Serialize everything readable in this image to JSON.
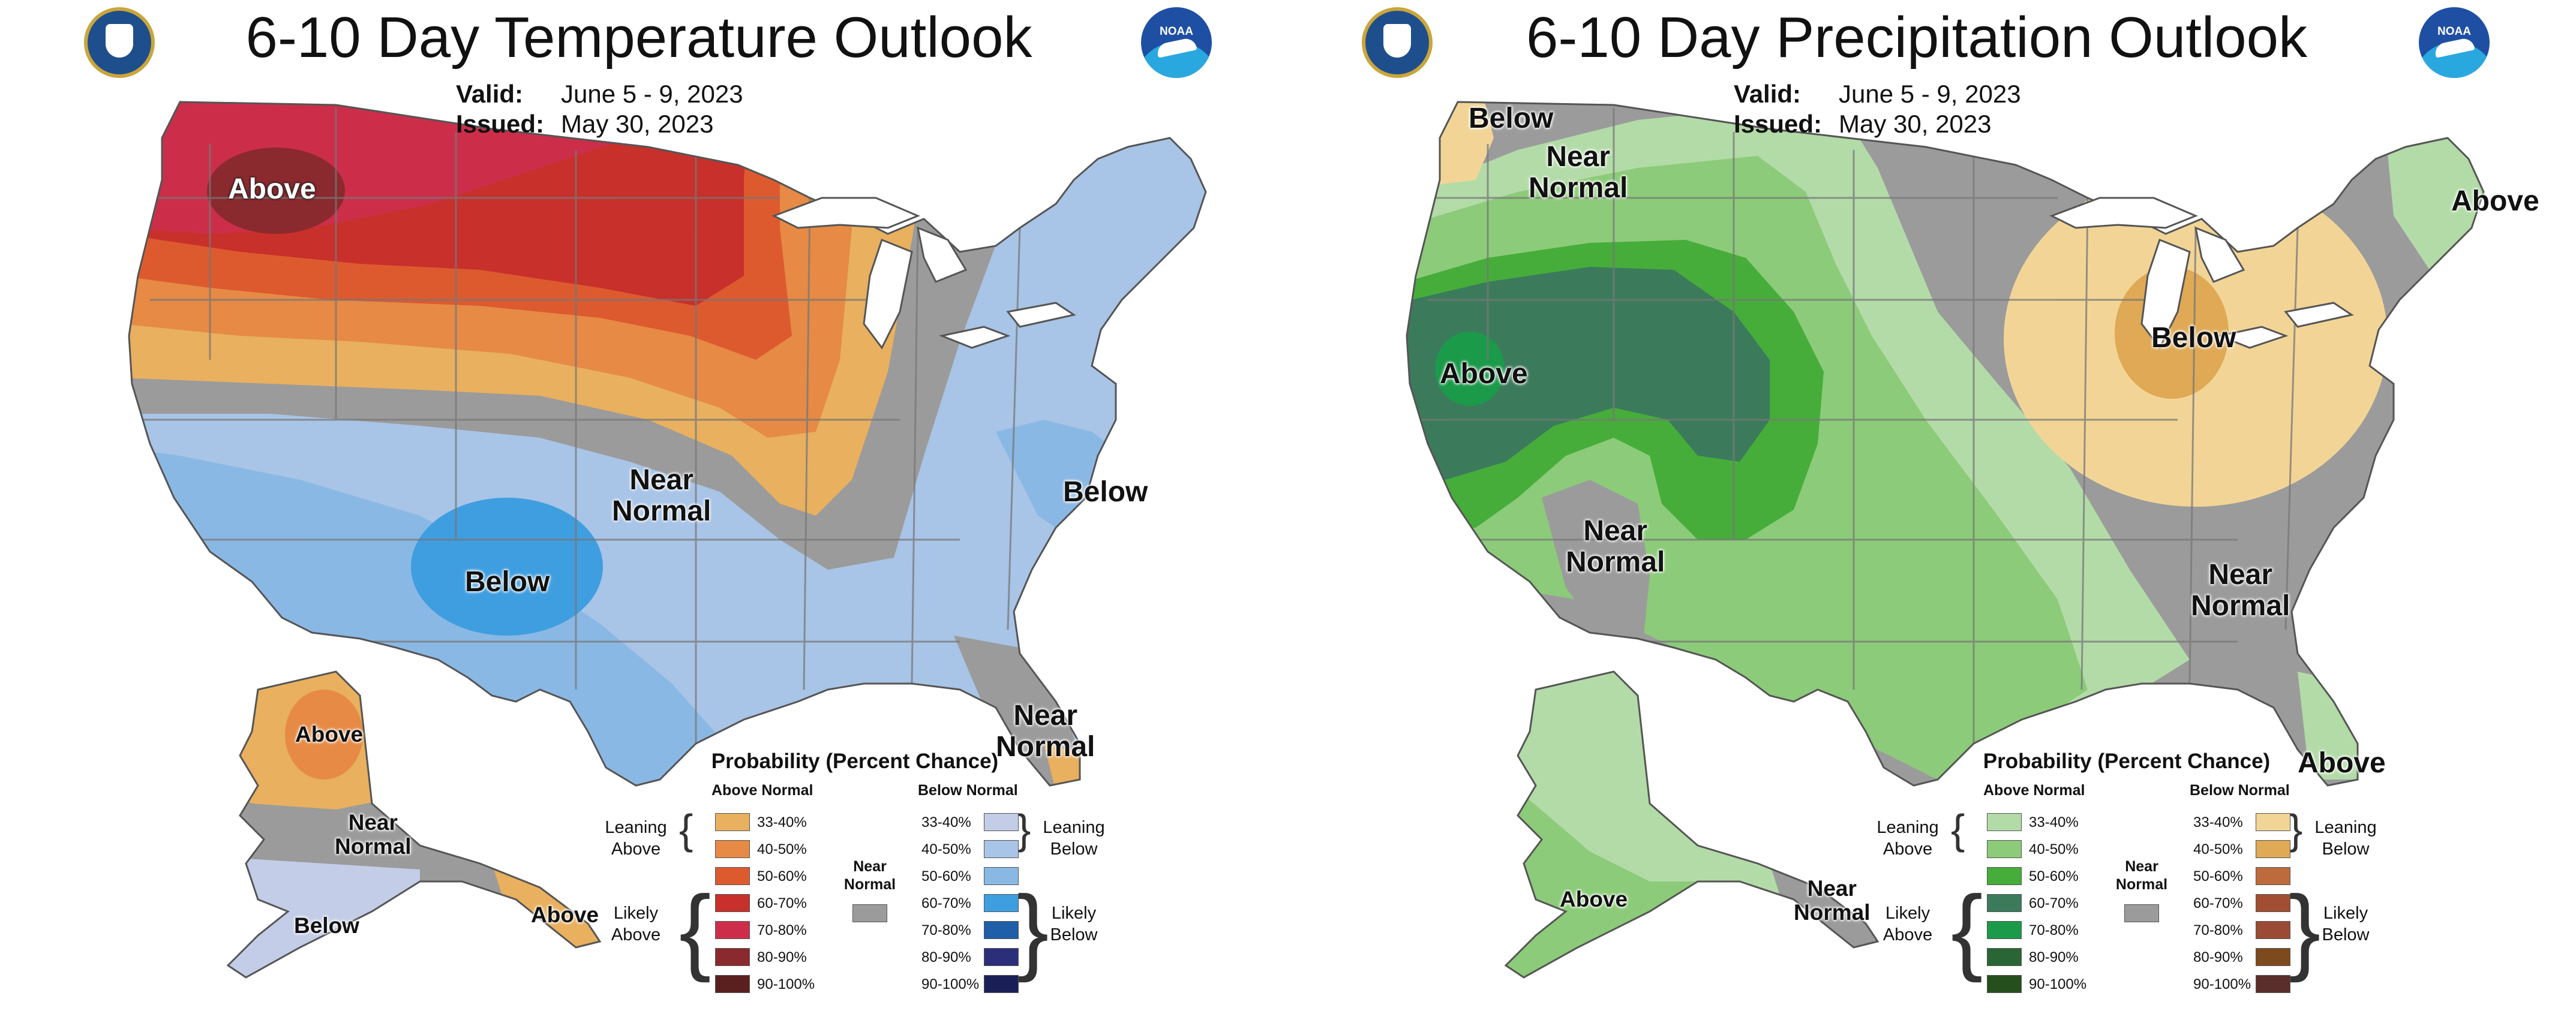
{
  "temperature": {
    "title": "6-10 Day Temperature Outlook",
    "valid_label": "Valid:",
    "valid_value": "June 5 - 9, 2023",
    "issued_label": "Issued:",
    "issued_value": "May 30, 2023",
    "map_labels": {
      "above_nw": "Above",
      "near_normal_center": "Near\nNormal",
      "below_sw": "Below",
      "below_east": "Below",
      "near_normal_fl": "Near\nNormal",
      "ak_above": "Above",
      "ak_near_normal": "Near\nNormal",
      "ak_below": "Below",
      "ak_above_se": "Above"
    }
  },
  "precipitation": {
    "title": "6-10 Day Precipitation Outlook",
    "valid_label": "Valid:",
    "valid_value": "June 5 - 9, 2023",
    "issued_label": "Issued:",
    "issued_value": "May 30, 2023",
    "map_labels": {
      "below_nw": "Below",
      "near_normal_nw": "Near\nNormal",
      "above_west": "Above",
      "near_normal_nv": "Near\nNormal",
      "below_mi": "Below",
      "above_ne": "Above",
      "near_normal_se": "Near\nNormal",
      "above_fl": "Above",
      "ak_above": "Above",
      "ak_near_normal": "Near\nNormal"
    }
  },
  "legend_temp": {
    "title": "Probability (Percent Chance)",
    "left_header": "Above Normal",
    "right_header": "Below Normal",
    "near_normal": "Near\nNormal",
    "leaning_left": "Leaning\nAbove",
    "likely_left": "Likely\nAbove",
    "leaning_right": "Leaning\nBelow",
    "likely_right": "Likely\nBelow",
    "ranges": [
      "33-40%",
      "40-50%",
      "50-60%",
      "60-70%",
      "70-80%",
      "80-90%",
      "90-100%"
    ],
    "left_colors": [
      "#e8b05f",
      "#e68a45",
      "#dd5a2f",
      "#c8302b",
      "#cc2e4a",
      "#8a2a2e",
      "#5a1f1f"
    ],
    "right_colors": [
      "#c3cde7",
      "#a8c4e6",
      "#8ab8e4",
      "#3f9ee0",
      "#1f5ea8",
      "#2b2f7a",
      "#1a1f55"
    ]
  },
  "legend_precip": {
    "title": "Probability (Percent Chance)",
    "left_header": "Above Normal",
    "right_header": "Below Normal",
    "near_normal": "Near\nNormal",
    "leaning_left": "Leaning\nAbove",
    "likely_left": "Likely\nAbove",
    "leaning_right": "Leaning\nBelow",
    "likely_right": "Likely\nBelow",
    "ranges": [
      "33-40%",
      "40-50%",
      "50-60%",
      "60-70%",
      "70-80%",
      "80-90%",
      "90-100%"
    ],
    "left_colors": [
      "#b3dba8",
      "#8ccb79",
      "#46ad3a",
      "#3b7b5c",
      "#1b9a4a",
      "#2a6535",
      "#264f1e"
    ],
    "right_colors": [
      "#f2d596",
      "#dfa956",
      "#bd6a3c",
      "#a14e32",
      "#9b4a35",
      "#7d4a1d",
      "#5a2e2a"
    ]
  },
  "colors": {
    "near_normal_gray": "#9b9b9b",
    "land_outline": "#555555",
    "great_lakes": "#ffffff"
  }
}
